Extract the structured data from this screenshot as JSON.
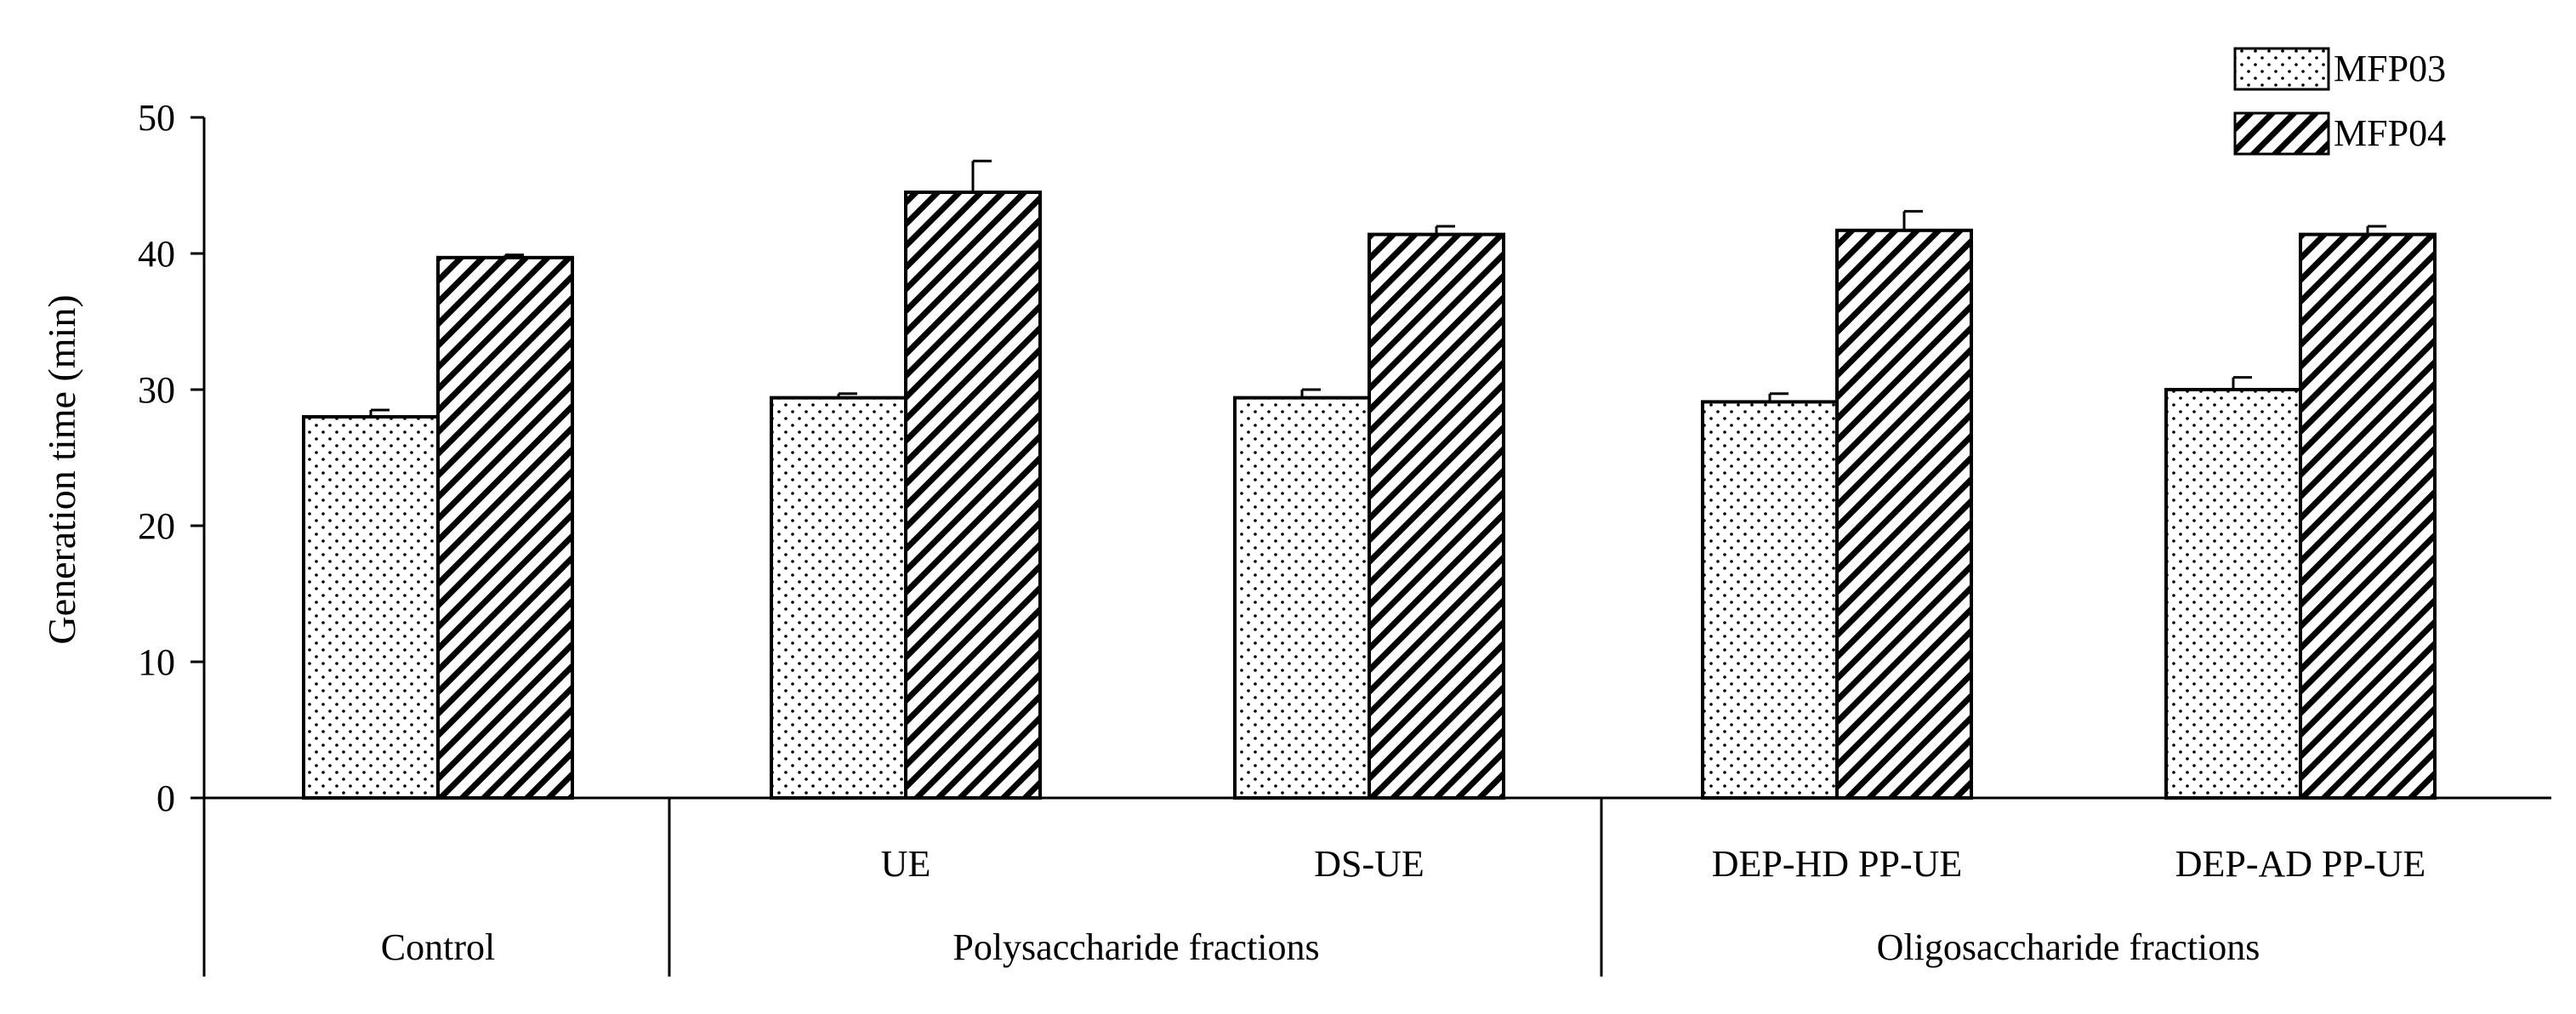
{
  "chart_data": {
    "type": "bar",
    "ylabel": "Generation time (min)",
    "ylim": [
      0,
      50
    ],
    "yticks": [
      0,
      10,
      20,
      30,
      40,
      50
    ],
    "legend_position": "top-right",
    "groups": [
      {
        "label": "Control",
        "categories": [
          ""
        ]
      },
      {
        "label": "Polysaccharide fractions",
        "categories": [
          "UE",
          "DS-UE"
        ]
      },
      {
        "label": "Oligosaccharide fractions",
        "categories": [
          "DEP-HD PP-UE",
          "DEP-AD PP-UE"
        ]
      }
    ],
    "categories": [
      "",
      "UE",
      "DS-UE",
      "DEP-HD PP-UE",
      "DEP-AD PP-UE"
    ],
    "series": [
      {
        "name": "MFP03",
        "pattern": "dots",
        "values": [
          28.0,
          29.4,
          29.4,
          29.1,
          30.0
        ],
        "errors": [
          0.5,
          0.3,
          0.6,
          0.6,
          0.9
        ]
      },
      {
        "name": "MFP04",
        "pattern": "diagonal-hatch",
        "values": [
          39.7,
          44.5,
          41.4,
          41.7,
          41.4
        ],
        "errors": [
          0.2,
          2.3,
          0.6,
          1.4,
          0.6
        ]
      }
    ]
  }
}
